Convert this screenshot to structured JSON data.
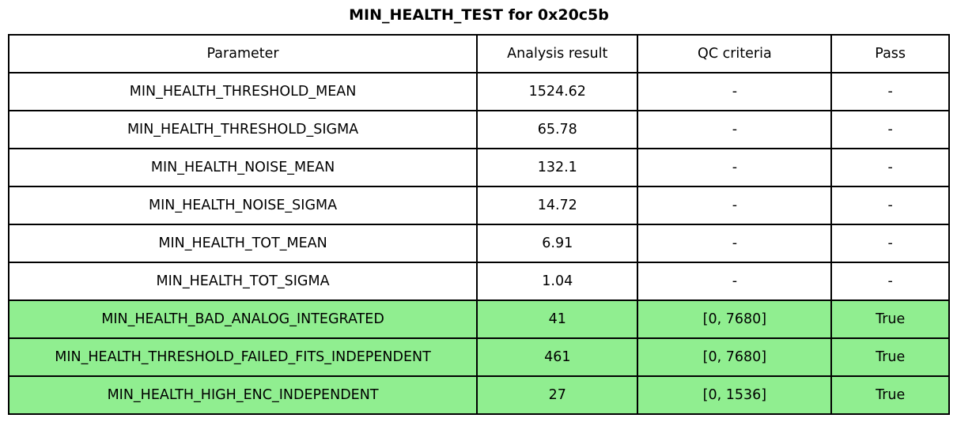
{
  "title": "MIN_HEALTH_TEST for 0x20c5b",
  "colors": {
    "pass_row_bg": "#90EE90",
    "border": "#000000",
    "background": "#ffffff",
    "text": "#000000"
  },
  "chart_data": {
    "type": "table",
    "title": "MIN_HEALTH_TEST for 0x20c5b",
    "columns": [
      "Parameter",
      "Analysis result",
      "QC criteria",
      "Pass"
    ],
    "rows": [
      {
        "parameter": "MIN_HEALTH_THRESHOLD_MEAN",
        "analysis_result": "1524.62",
        "qc_criteria": "-",
        "pass": "-",
        "highlighted": false
      },
      {
        "parameter": "MIN_HEALTH_THRESHOLD_SIGMA",
        "analysis_result": "65.78",
        "qc_criteria": "-",
        "pass": "-",
        "highlighted": false
      },
      {
        "parameter": "MIN_HEALTH_NOISE_MEAN",
        "analysis_result": "132.1",
        "qc_criteria": "-",
        "pass": "-",
        "highlighted": false
      },
      {
        "parameter": "MIN_HEALTH_NOISE_SIGMA",
        "analysis_result": "14.72",
        "qc_criteria": "-",
        "pass": "-",
        "highlighted": false
      },
      {
        "parameter": "MIN_HEALTH_TOT_MEAN",
        "analysis_result": "6.91",
        "qc_criteria": "-",
        "pass": "-",
        "highlighted": false
      },
      {
        "parameter": "MIN_HEALTH_TOT_SIGMA",
        "analysis_result": "1.04",
        "qc_criteria": "-",
        "pass": "-",
        "highlighted": false
      },
      {
        "parameter": "MIN_HEALTH_BAD_ANALOG_INTEGRATED",
        "analysis_result": "41",
        "qc_criteria": "[0, 7680]",
        "pass": "True",
        "highlighted": true
      },
      {
        "parameter": "MIN_HEALTH_THRESHOLD_FAILED_FITS_INDEPENDENT",
        "analysis_result": "461",
        "qc_criteria": "[0, 7680]",
        "pass": "True",
        "highlighted": true
      },
      {
        "parameter": "MIN_HEALTH_HIGH_ENC_INDEPENDENT",
        "analysis_result": "27",
        "qc_criteria": "[0, 1536]",
        "pass": "True",
        "highlighted": true
      }
    ]
  }
}
